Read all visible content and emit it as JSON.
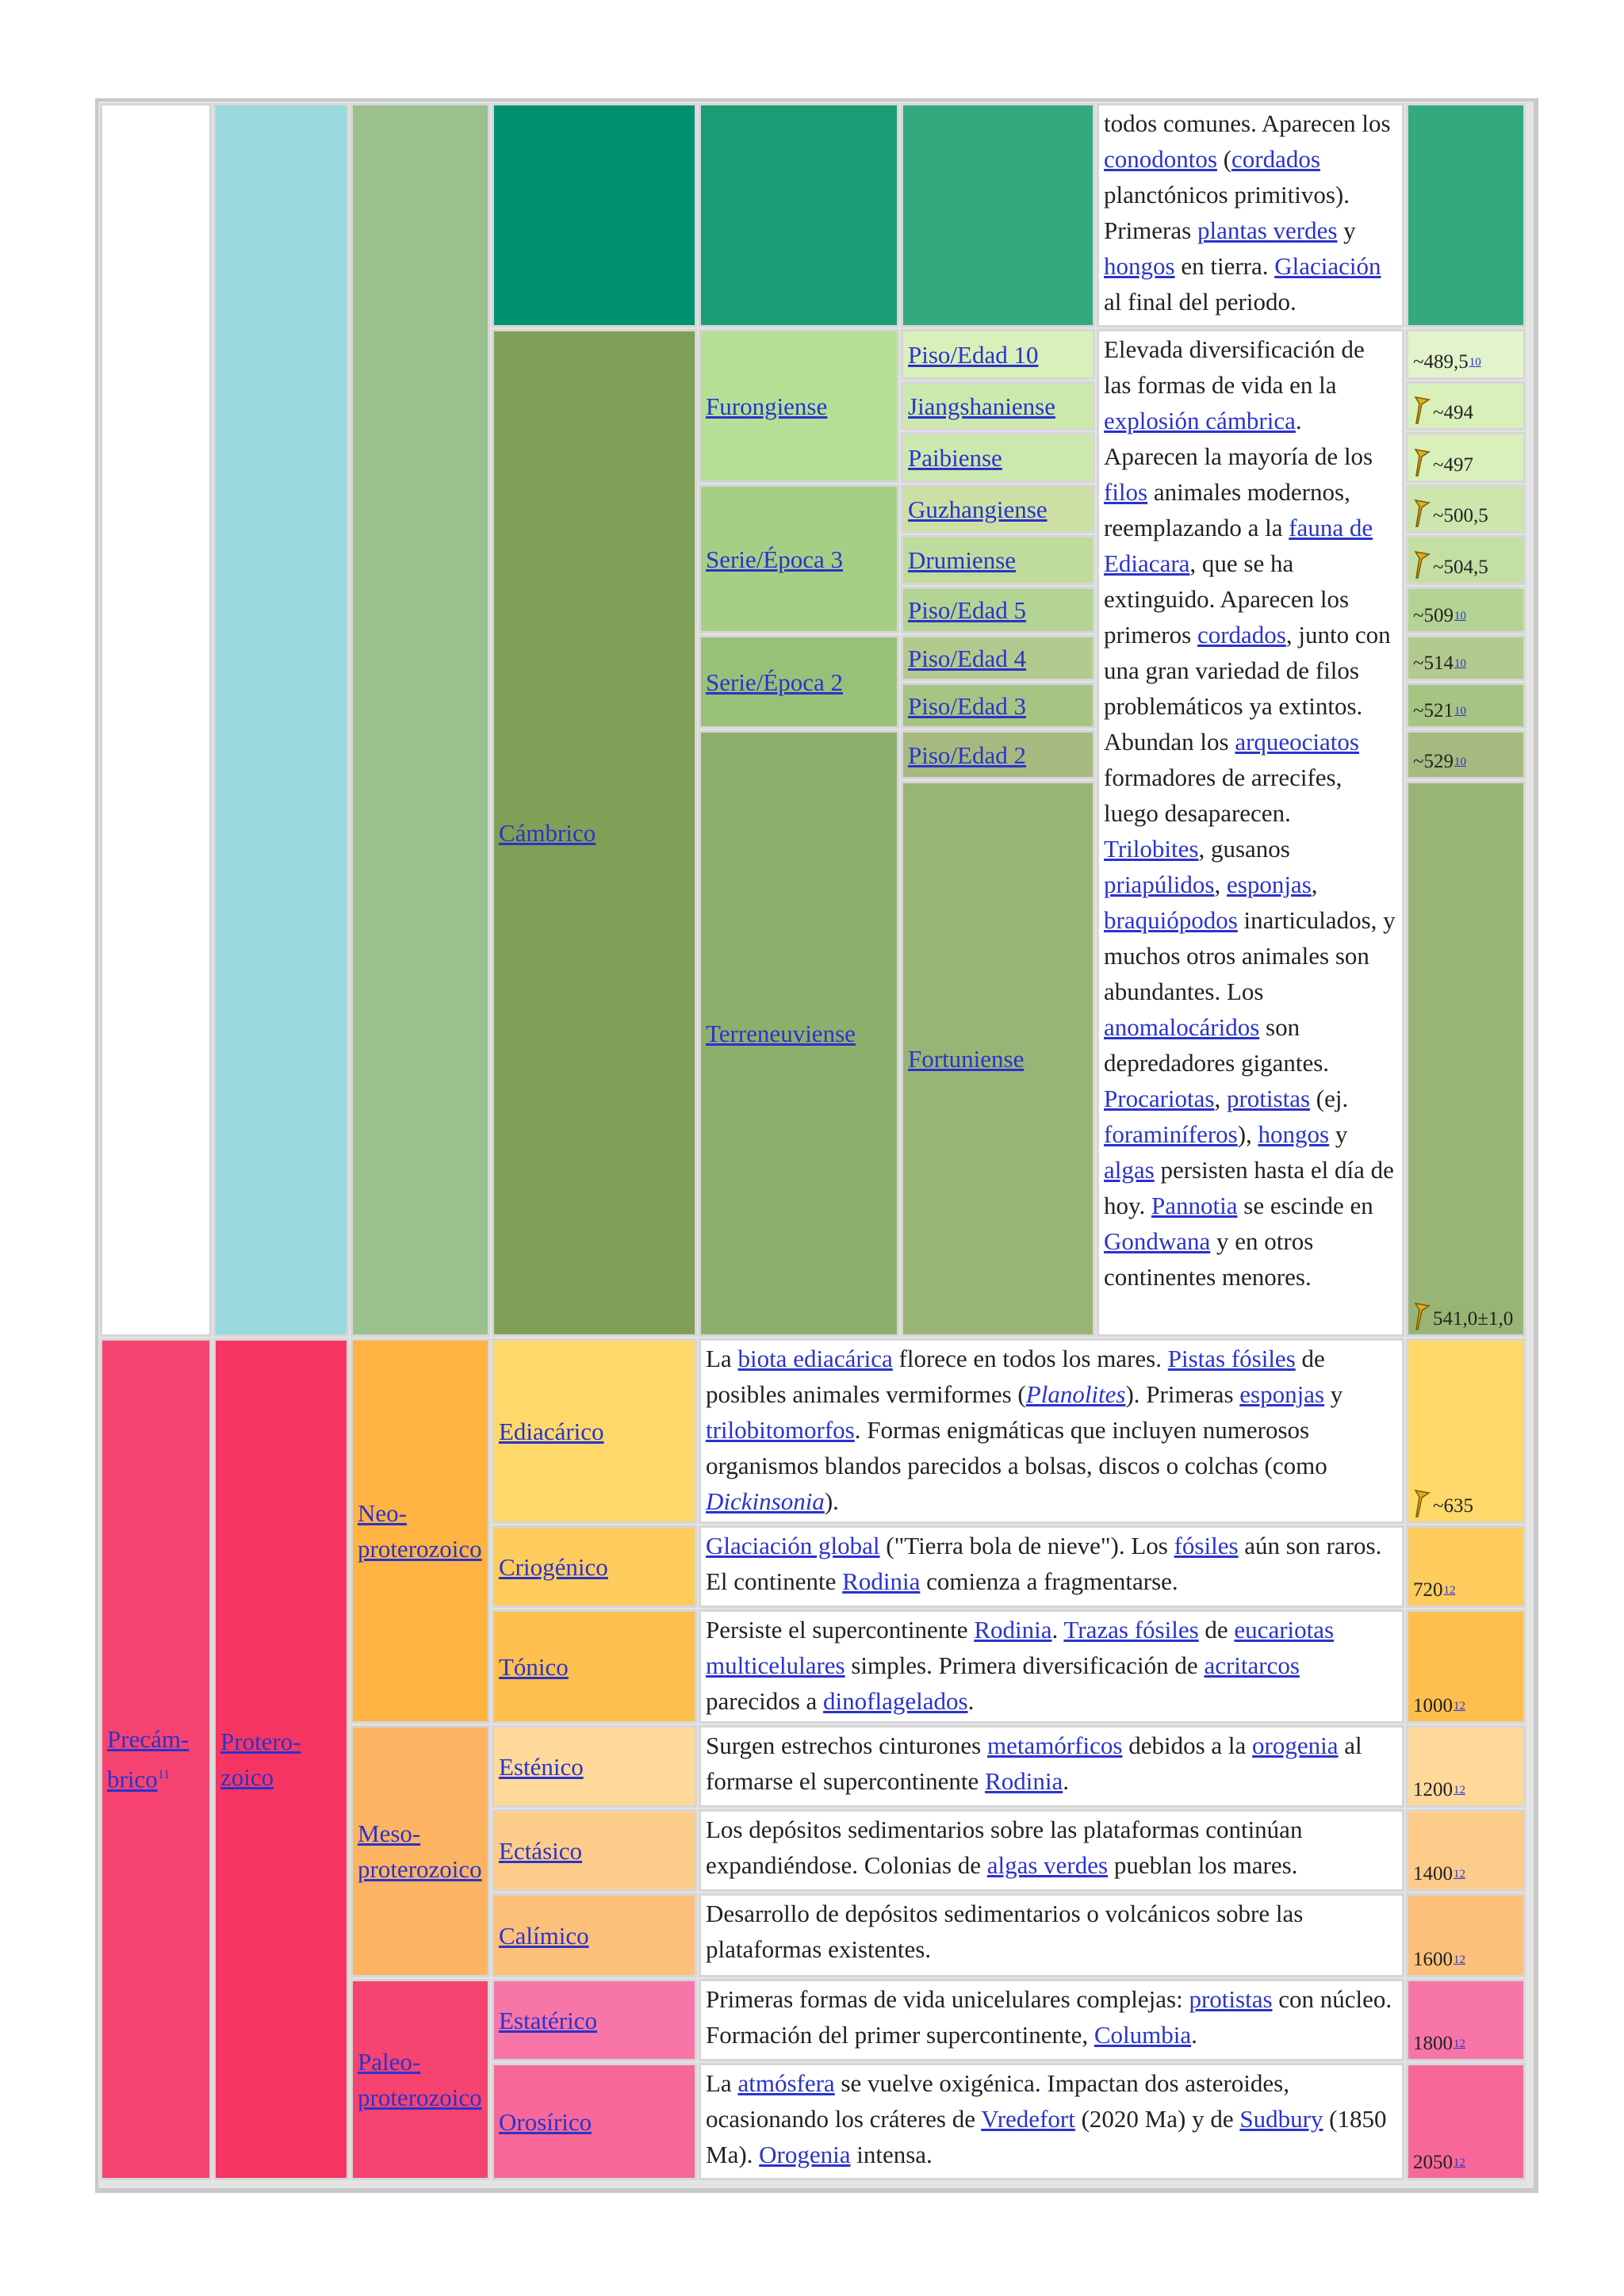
{
  "ordovician_tail": {
    "text_a": "todos comunes. Aparecen los ",
    "link_conodontos": "conodontos",
    "text_b": " (",
    "link_cordados": "cordados",
    "text_c": " planctónicos primitivos). Primeras ",
    "link_plantas_verdes": "plantas verdes",
    "text_d": " y ",
    "link_hongos": "hongos",
    "text_e": " en tierra. ",
    "link_glaciacion": "Glaciación",
    "text_f": " al final del periodo."
  },
  "cambrian": {
    "period": "Cámbrico",
    "series": {
      "furongiense": "Furongiense",
      "serie3": "Serie/Época 3",
      "serie2": "Serie/Época 2",
      "terreneuviense": "Terreneuviense"
    },
    "stages": {
      "piso10": "Piso/Edad 10",
      "jiangshaniense": "Jiangshaniense",
      "paibiense": "Paibiense",
      "guzhangiense": "Guzhangiense",
      "drumiense": "Drumiense",
      "piso5": "Piso/Edad 5",
      "piso4": "Piso/Edad 4",
      "piso3": "Piso/Edad 3",
      "piso2": "Piso/Edad 2",
      "fortuniense": "Fortuniense"
    },
    "ages": {
      "piso10": "~489,5",
      "piso10_ref": "10",
      "jiangshaniense": "~494",
      "paibiense": "~497",
      "guzhangiense": "~500,5",
      "drumiense": "~504,5",
      "piso5": "~509",
      "piso5_ref": "10",
      "piso4": "~514",
      "piso4_ref": "10",
      "piso3": "~521",
      "piso3_ref": "10",
      "piso2": "~529",
      "piso2_ref": "10",
      "fortuniense": "541,0±1,0"
    },
    "desc": {
      "t1": "Elevada diversificación de las formas de vida en la ",
      "l_explosion": "explosión cámbrica",
      "t2": ". Aparecen la mayoría de los ",
      "l_filos": "filos",
      "t3": " animales modernos, reemplazando a la ",
      "l_fauna": "fauna de Ediacara",
      "t4": ", que se ha extinguido. Aparecen los primeros ",
      "l_cordados": "cordados",
      "t5": ", junto con una gran variedad de filos problemáticos ya extintos. Abundan los ",
      "l_arqueociatos": "arqueociatos",
      "t6": " formadores de arrecifes, luego desaparecen. ",
      "l_trilobites": "Trilobites",
      "t7": ", gusanos ",
      "l_priapulidos": "priapúlidos",
      "t8": ", ",
      "l_esponjas": "esponjas",
      "t9": ", ",
      "l_braquiopodos": "braquiópodos",
      "t10": " inarticulados, y muchos otros animales son abundantes. Los ",
      "l_anomalocaridos": "anomalocáridos",
      "t11": " son depredadores gigantes. ",
      "l_procariotas": "Procariotas",
      "t12": ", ",
      "l_protistas": "protistas",
      "t13": " (ej. ",
      "l_foraminiferos": "foraminíferos",
      "t14": "), ",
      "l_hongos": "hongos",
      "t15": " y ",
      "l_algas": "algas",
      "t16": " persisten hasta el día de hoy. ",
      "l_pannotia": "Pannotia",
      "t17": " se escinde en ",
      "l_gondwana": "Gondwana",
      "t18": " y en otros continentes menores."
    }
  },
  "precambrian": {
    "eon": "Precám-brico",
    "eon_ref": "11",
    "era": "Protero-zoico",
    "neo": "Neo-proterozoico",
    "meso": "Meso-proterozoico",
    "paleo": "Paleo-proterozoico",
    "periods": {
      "ediacarico": "Ediacárico",
      "criogenico": "Criogénico",
      "tonico": "Tónico",
      "estenico": "Esténico",
      "ectasico": "Ectásico",
      "calimico": "Calímico",
      "estaterico": "Estatérico",
      "orosirico": "Orosírico"
    },
    "ages": {
      "ediacarico": "~635",
      "criogenico": "720",
      "tonico": "1000",
      "estenico": "1200",
      "ectasico": "1400",
      "calimico": "1600",
      "estaterico": "1800",
      "orosirico": "2050",
      "ref": "12"
    },
    "desc": {
      "ediacarico": {
        "t1": "La ",
        "l1": "biota ediacárica",
        "t2": " florece en todos los mares. ",
        "l2": "Pistas fósiles",
        "t3": " de posibles animales vermiformes (",
        "l3": "Planolites",
        "t4": "). Primeras ",
        "l4": "esponjas",
        "t5": " y ",
        "l5": "trilobitomorfos",
        "t6": ". Formas enigmáticas que incluyen numerosos organismos blandos parecidos a bolsas, discos o colchas (como ",
        "l6": "Dickinsonia",
        "t7": ")."
      },
      "criogenico": {
        "l1": "Glaciación global",
        "t1": " (\"Tierra bola de nieve\"). Los ",
        "l2": "fósiles",
        "t2": " aún son raros. El continente ",
        "l3": "Rodinia",
        "t3": " comienza a fragmentarse."
      },
      "tonico": {
        "t1": "Persiste el supercontinente ",
        "l1": "Rodinia",
        "t2": ". ",
        "l2": "Trazas fósiles",
        "t3": " de ",
        "l3": "eucariotas multicelulares",
        "t4": " simples. Primera diversificación de ",
        "l4": "acritarcos",
        "t5": " parecidos a ",
        "l5": "dinoflagelados",
        "t6": "."
      },
      "estenico": {
        "t1": "Surgen estrechos cinturones ",
        "l1": "metamórficos",
        "t2": " debidos a la ",
        "l2": "orogenia",
        "t3": " al formarse el supercontinente ",
        "l3": "Rodinia",
        "t4": "."
      },
      "ectasico": {
        "t1": "Los depósitos sedimentarios sobre las plataformas continúan expandiéndose. Colonias de ",
        "l1": "algas verdes",
        "t2": " pueblan los mares."
      },
      "calimico": {
        "t1": "Desarrollo de depósitos sedimentarios o volcánicos sobre las plataformas existentes."
      },
      "estaterico": {
        "t1": "Primeras formas de vida unicelulares complejas: ",
        "l1": "protistas",
        "t2": " con núcleo. Formación del primer supercontinente, ",
        "l2": "Columbia",
        "t3": "."
      },
      "orosirico": {
        "t1": "La ",
        "l1": "atmósfera",
        "t2": " se vuelve oxigénica. Impactan dos asteroides, ocasionando los cráteres de ",
        "l2": "Vredefort",
        "t3": " (2020 Ma) y de ",
        "l3": "Sudbury",
        "t4": " (1850 Ma). ",
        "l4": "Orogenia",
        "t5": " intensa."
      }
    }
  },
  "colors": {
    "phanerozoic_eon": "#9ad9de",
    "paleozoic_era": "#99c08d",
    "ordovician": "#009270",
    "ordovician_light": "#33a97e",
    "cambrian": "#7fa056",
    "furongian": "#b3e095",
    "furongian_stage": "#d9f0bb",
    "series3": "#a6cf86",
    "series3_stage": "#bfdc9c",
    "series2": "#99c078",
    "series2_stage": "#a6c583",
    "terreneuvian": "#8cb06c",
    "terreneuvian_stage": "#99b575",
    "precambrian": "#f74370",
    "proterozoic": "#f73563",
    "neoproterozoic": "#feb342",
    "ediacaran": "#fed96a",
    "cryogenian": "#fecc5c",
    "tonian": "#febf4e",
    "mesoproterozoic": "#fdb462",
    "stenian": "#fed99a",
    "ectasian": "#fdcc8a",
    "calymmian": "#fdc07a",
    "paleoproterozoic": "#f74370",
    "statherian": "#f875a7",
    "orosirian": "#f76898"
  }
}
